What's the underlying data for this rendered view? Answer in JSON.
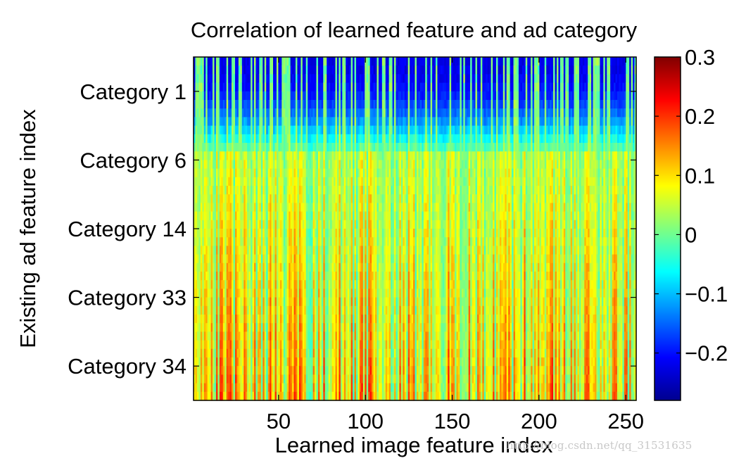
{
  "chart_data": {
    "type": "heatmap",
    "title": "Correlation of learned feature and ad category",
    "xlabel": "Learned image feature index",
    "ylabel": "Existing ad feature index",
    "xlim": [
      1,
      256
    ],
    "x_ticks": [
      50,
      100,
      150,
      200,
      250
    ],
    "y_ticks": [
      "Category 1",
      "Category 6",
      "Category 14",
      "Category 33",
      "Category 34"
    ],
    "colorbar": {
      "colormap": "jet",
      "range": [
        -0.28,
        0.3
      ],
      "ticks": [
        "0.3",
        "0.2",
        "0.1",
        "0",
        "−0.1",
        "−0.2"
      ],
      "tick_values": [
        0.3,
        0.2,
        0.1,
        0,
        -0.1,
        -0.2
      ]
    },
    "description_of_pattern": "Top rows (Category 1 to Category 6) show mostly negative correlation values (~-0.2) across most feature columns; lower rows (Category 6 to Category 34) show near-zero to positive values (~0.0 to 0.2) varying by column."
  },
  "watermark": "http://blog.csdn.net/qq_31531635"
}
